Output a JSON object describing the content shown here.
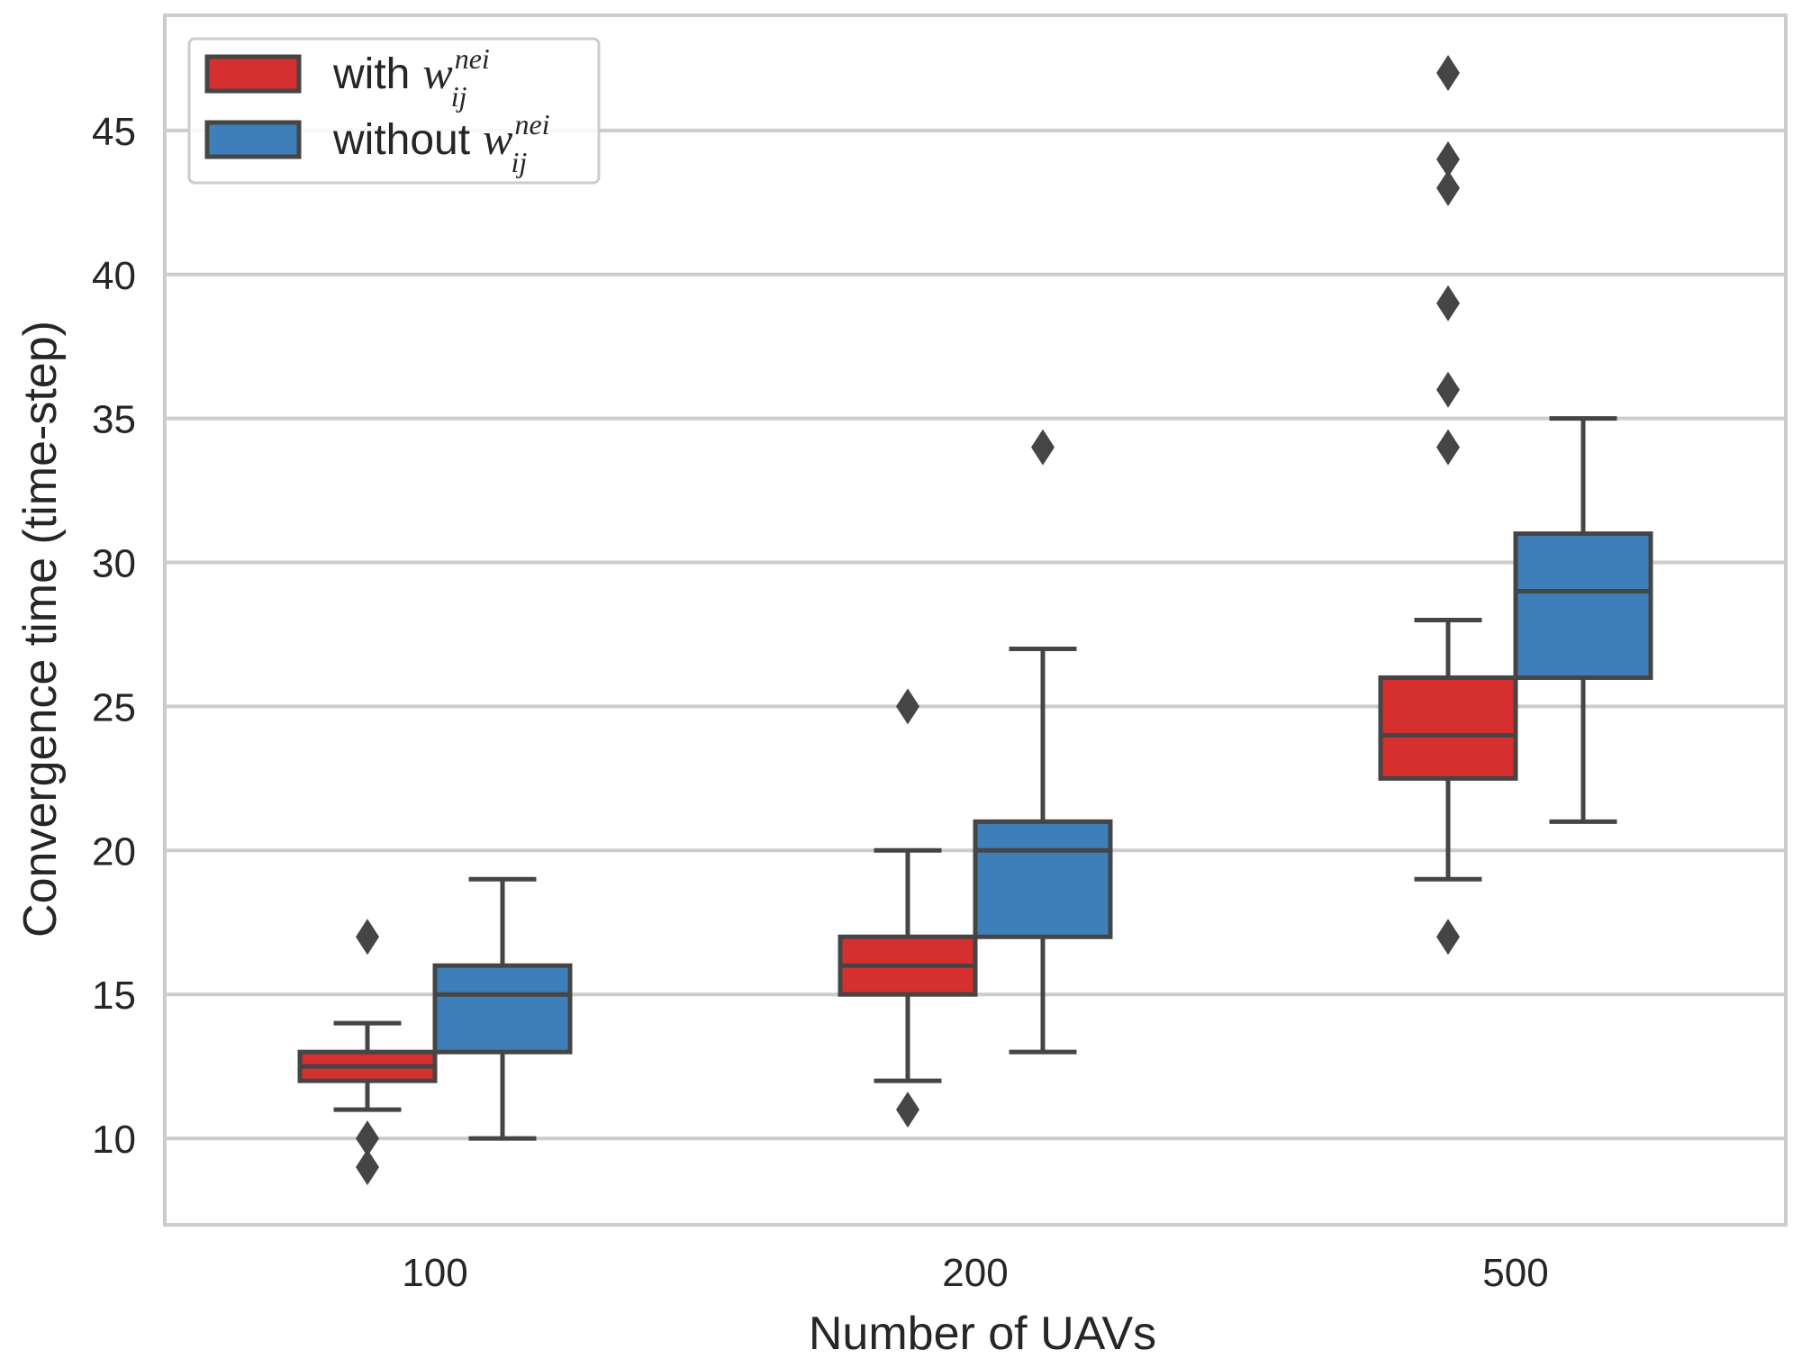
{
  "colors": {
    "with": "#d62f2f",
    "without": "#3f7fb9",
    "box_edge": "#454545",
    "grid": "#cccccc",
    "frame": "#cccccc"
  },
  "chart_data": {
    "type": "box",
    "xlabel": "Number of UAVs",
    "ylabel": "Convergence time (time-step)",
    "categories": [
      "100",
      "200",
      "500"
    ],
    "ylim": [
      7.0,
      49.0
    ],
    "yticks": [
      10,
      15,
      20,
      25,
      30,
      35,
      40,
      45
    ],
    "grid": true,
    "legend_position": "top-left",
    "series": [
      {
        "name": "with w_ij^nei",
        "legend_prefix": "with",
        "math_base": "w",
        "math_sup": "nei",
        "math_sub": "ij",
        "color_key": "with",
        "boxes": [
          {
            "category": "100",
            "whisker_low": 11,
            "q1": 12,
            "median": 12.5,
            "q3": 13,
            "whisker_high": 14,
            "outliers": [
              17,
              10,
              9
            ]
          },
          {
            "category": "200",
            "whisker_low": 12,
            "q1": 15,
            "median": 16,
            "q3": 17,
            "whisker_high": 20,
            "outliers": [
              25,
              11
            ]
          },
          {
            "category": "500",
            "whisker_low": 19,
            "q1": 22.5,
            "median": 24,
            "q3": 26,
            "whisker_high": 28,
            "outliers": [
              47,
              44,
              43,
              39,
              36,
              34,
              17
            ]
          }
        ]
      },
      {
        "name": "without w_ij^nei",
        "legend_prefix": "without",
        "math_base": "w",
        "math_sup": "nei",
        "math_sub": "ij",
        "color_key": "without",
        "boxes": [
          {
            "category": "100",
            "whisker_low": 10,
            "q1": 13,
            "median": 15,
            "q3": 16,
            "whisker_high": 19,
            "outliers": []
          },
          {
            "category": "200",
            "whisker_low": 13,
            "q1": 17,
            "median": 20,
            "q3": 21,
            "whisker_high": 27,
            "outliers": [
              34
            ]
          },
          {
            "category": "500",
            "whisker_low": 21,
            "q1": 26,
            "median": 29,
            "q3": 31,
            "whisker_high": 35,
            "outliers": []
          }
        ]
      }
    ]
  }
}
